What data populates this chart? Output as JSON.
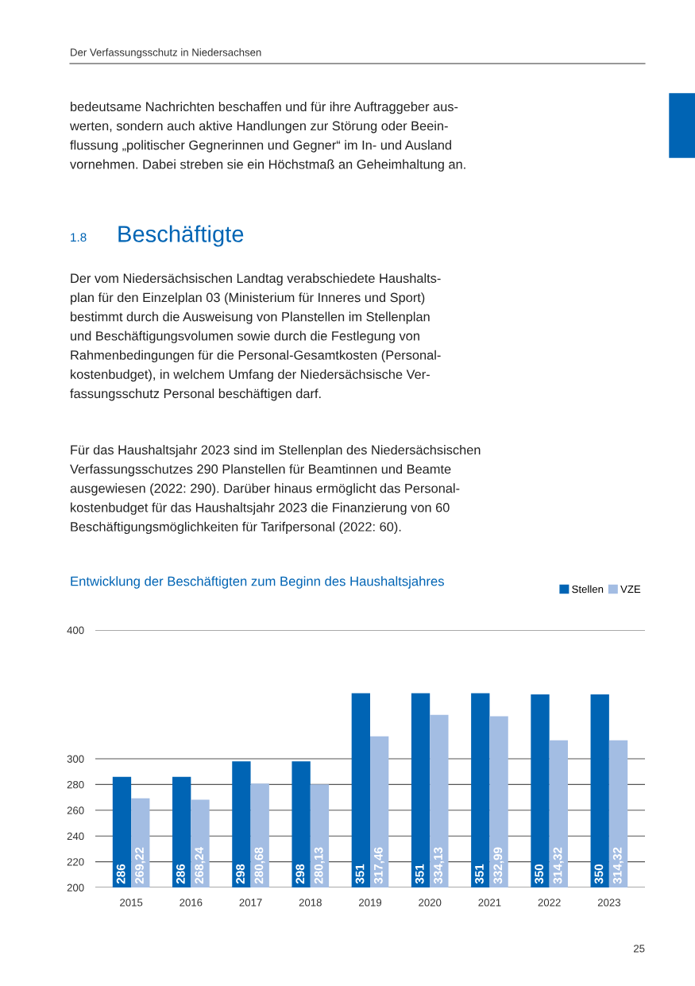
{
  "chart_data": {
    "type": "bar",
    "title": "Entwicklung der Beschäftigten zum Beginn des Haushaltsjahres",
    "categories": [
      "2015",
      "2016",
      "2017",
      "2018",
      "2019",
      "2020",
      "2021",
      "2022",
      "2023"
    ],
    "series": [
      {
        "name": "Stellen",
        "color": "#0064b4",
        "values": [
          286,
          286,
          298,
          298,
          351,
          351,
          351,
          350,
          350
        ]
      },
      {
        "name": "VZE",
        "color": "#a3bde3",
        "values": [
          269.22,
          268.24,
          280.68,
          280.13,
          317.46,
          334.13,
          332.99,
          314.32,
          314.32
        ],
        "value_labels": [
          "269,22",
          "268,24",
          "280,68",
          "280,13",
          "317,46",
          "334,13",
          "332,99",
          "314,32",
          "314,32"
        ]
      }
    ],
    "ylim": [
      200,
      400
    ],
    "yticks": [
      200,
      220,
      240,
      260,
      280,
      300,
      400
    ],
    "grid": "y",
    "legend": "top right",
    "data_labels": true,
    "annotations": [
      "Der Verfassungsschutz in Niedersachsen",
      "bedeutsame Nachrichten beschaffen und für ihre Auftraggeber aus-\nwerten, sondern auch aktive Handlungen zur Störung oder Beein-\nflussung „politischer Gegnerinnen und Gegner“ im In- und Ausland\nvornehmen. Dabei streben sie ein Höchstmaß an Geheimhaltung an.",
      "1.8",
      "Beschäftigte",
      "Der vom Niedersächsischen Landtag verabschiedete Haushalts-\nplan für den Einzelplan 03 (Ministerium für Inneres und Sport)\nbestimmt durch die Ausweisung von Planstellen im Stellenplan\nund Beschäftigungsvolumen sowie durch die Festlegung von\nRahmenbedingungen für die Personal-Gesamtkosten (Personal-\nkostenbudget), in welchem Umfang der Niedersächsische Ver-\nfassungsschutz Personal beschäftigen darf.",
      "Für das Haushaltsjahr 2023 sind im Stellenplan des Niedersächsischen\nVerfassungsschutzes 290 Planstellen für Beamtinnen und Beamte\nausgewiesen (2022: 290). Darüber hinaus ermöglicht das Personal-\nkostenbudget für das Haushaltsjahr 2023 die Finanzierung von 60\nBeschäftigungsmöglichkeiten für Tarifpersonal (2022: 60).",
      "25"
    ]
  }
}
